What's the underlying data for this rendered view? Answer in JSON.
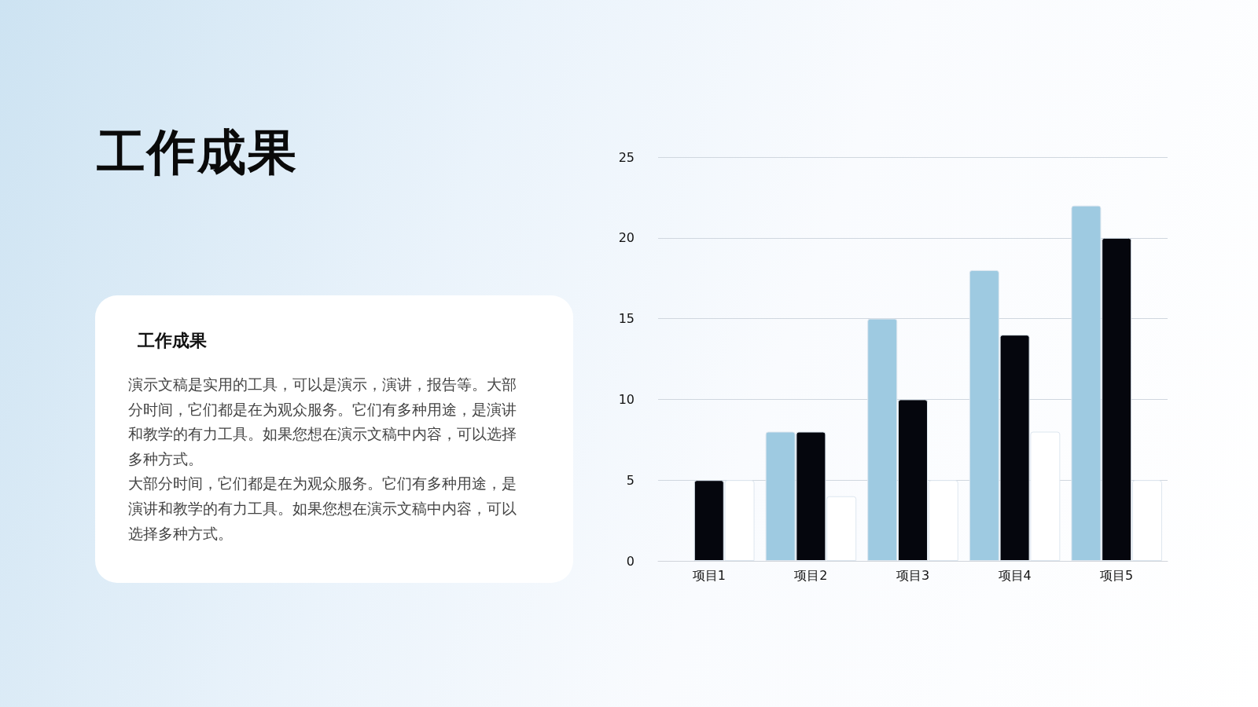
{
  "chart_data": {
    "type": "bar",
    "title": "工作成果",
    "annotations": [
      "工作成果",
      "演示文稿是实用的工具，可以是演示，演讲，报告等。大部分时间，它们都是在为观众服务。它们有多种用途，是演讲和教学的有力工具。如果您想在演示文稿中内容，可以选择多种方式。",
      "大部分时间，它们都是在为观众服务。它们有多种用途，是演讲和教学的有力工具。如果您想在演示文稿中内容，可以选择多种方式。"
    ],
    "categories": [
      "项目1",
      "项目2",
      "项目3",
      "项目4",
      "项目5"
    ],
    "series": [
      {
        "color": "#9ecae1",
        "values": [
          0,
          8,
          15,
          18,
          22
        ]
      },
      {
        "color": "#05060d",
        "values": [
          5,
          8,
          10,
          14,
          20
        ]
      },
      {
        "color": "#ffffff",
        "values": [
          5,
          4,
          5,
          8,
          5
        ]
      }
    ],
    "ylim": [
      0,
      25
    ],
    "yticks": [
      0,
      5,
      10,
      15,
      20,
      25
    ],
    "grid": "y"
  }
}
